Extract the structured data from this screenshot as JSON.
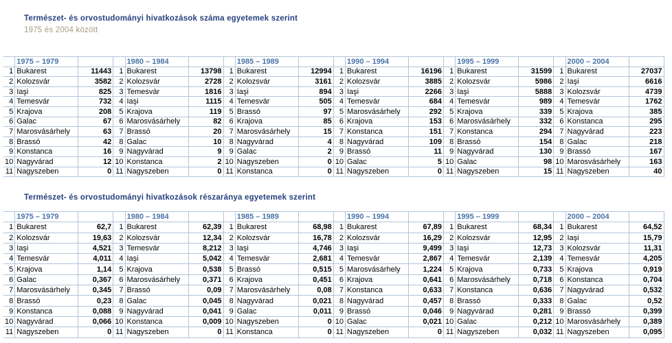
{
  "colors": {
    "title": "#263f7e",
    "subtitle": "#a69c7f",
    "period": "#4a74a8",
    "grid": "#b2c4d9",
    "text": "#000000",
    "background": "#ffffff"
  },
  "tables": [
    {
      "id": "counts",
      "title": "Természet- és orvostudományi hivatkozások száma egyetemek szerint",
      "subtitle": "1975 és 2004 között",
      "groups": [
        {
          "period": "1975 – 1979",
          "rows": [
            {
              "rank": "1",
              "city": "Bukarest",
              "value": "11443"
            },
            {
              "rank": "2",
              "city": "Kolozsvár",
              "value": "3582"
            },
            {
              "rank": "3",
              "city": "Iaşi",
              "value": "825"
            },
            {
              "rank": "4",
              "city": "Temesvár",
              "value": "732"
            },
            {
              "rank": "5",
              "city": "Krajova",
              "value": "208"
            },
            {
              "rank": "6",
              "city": "Galac",
              "value": "67"
            },
            {
              "rank": "7",
              "city": "Marosvásárhely",
              "value": "63"
            },
            {
              "rank": "8",
              "city": "Brassó",
              "value": "42"
            },
            {
              "rank": "9",
              "city": "Konstanca",
              "value": "16"
            },
            {
              "rank": "10",
              "city": "Nagyvárad",
              "value": "12"
            },
            {
              "rank": "11",
              "city": "Nagyszeben",
              "value": "0"
            }
          ]
        },
        {
          "period": "1980 – 1984",
          "rows": [
            {
              "rank": "1",
              "city": "Bukarest",
              "value": "13798"
            },
            {
              "rank": "2",
              "city": "Kolozsvár",
              "value": "2728"
            },
            {
              "rank": "3",
              "city": "Temesvár",
              "value": "1816"
            },
            {
              "rank": "4",
              "city": "Iaşi",
              "value": "1115"
            },
            {
              "rank": "5",
              "city": "Krajova",
              "value": "119"
            },
            {
              "rank": "6",
              "city": "Marosvásárhely",
              "value": "82"
            },
            {
              "rank": "7",
              "city": "Brassó",
              "value": "20"
            },
            {
              "rank": "8",
              "city": "Galac",
              "value": "10"
            },
            {
              "rank": "9",
              "city": "Nagyvárad",
              "value": "9"
            },
            {
              "rank": "10",
              "city": "Konstanca",
              "value": "2"
            },
            {
              "rank": "11",
              "city": "Nagyszeben",
              "value": "0"
            }
          ]
        },
        {
          "period": "1985 – 1989",
          "rows": [
            {
              "rank": "1",
              "city": "Bukarest",
              "value": "12994"
            },
            {
              "rank": "2",
              "city": "Kolozsvár",
              "value": "3161"
            },
            {
              "rank": "3",
              "city": "Iaşi",
              "value": "894"
            },
            {
              "rank": "4",
              "city": "Temesvár",
              "value": "505"
            },
            {
              "rank": "5",
              "city": "Brassó",
              "value": "97"
            },
            {
              "rank": "6",
              "city": "Krajova",
              "value": "85"
            },
            {
              "rank": "7",
              "city": "Marosvásárhely",
              "value": "15"
            },
            {
              "rank": "8",
              "city": "Nagyvárad",
              "value": "4"
            },
            {
              "rank": "9",
              "city": "Galac",
              "value": "2"
            },
            {
              "rank": "10",
              "city": "Nagyszeben",
              "value": "0"
            },
            {
              "rank": "11",
              "city": "Konstanca",
              "value": "0"
            }
          ]
        },
        {
          "period": "1990 – 1994",
          "rows": [
            {
              "rank": "1",
              "city": "Bukarest",
              "value": "16196"
            },
            {
              "rank": "2",
              "city": "Kolozsvár",
              "value": "3885"
            },
            {
              "rank": "3",
              "city": "Iaşi",
              "value": "2266"
            },
            {
              "rank": "4",
              "city": "Temesvár",
              "value": "684"
            },
            {
              "rank": "5",
              "city": "Marosvásárhely",
              "value": "292"
            },
            {
              "rank": "6",
              "city": "Krajova",
              "value": "153"
            },
            {
              "rank": "7",
              "city": "Konstanca",
              "value": "151"
            },
            {
              "rank": "8",
              "city": "Nagyvárad",
              "value": "109"
            },
            {
              "rank": "9",
              "city": "Brassó",
              "value": "11"
            },
            {
              "rank": "10",
              "city": "Galac",
              "value": "5"
            },
            {
              "rank": "11",
              "city": "Nagyszeben",
              "value": "0"
            }
          ]
        },
        {
          "period": "1995 – 1999",
          "rows": [
            {
              "rank": "1",
              "city": "Bukarest",
              "value": "31599"
            },
            {
              "rank": "2",
              "city": "Kolozsvár",
              "value": "5986"
            },
            {
              "rank": "3",
              "city": "Iaşi",
              "value": "5888"
            },
            {
              "rank": "4",
              "city": "Temesvár",
              "value": "989"
            },
            {
              "rank": "5",
              "city": "Krajova",
              "value": "339"
            },
            {
              "rank": "6",
              "city": "Marosvásárhely",
              "value": "332"
            },
            {
              "rank": "7",
              "city": "Konstanca",
              "value": "294"
            },
            {
              "rank": "8",
              "city": "Brassó",
              "value": "154"
            },
            {
              "rank": "9",
              "city": "Nagyvárad",
              "value": "130"
            },
            {
              "rank": "10",
              "city": "Galac",
              "value": "98"
            },
            {
              "rank": "11",
              "city": "Nagyszeben",
              "value": "15"
            }
          ]
        },
        {
          "period": "2000 – 2004",
          "rows": [
            {
              "rank": "1",
              "city": "Bukarest",
              "value": "27037"
            },
            {
              "rank": "2",
              "city": "Iaşi",
              "value": "6616"
            },
            {
              "rank": "3",
              "city": "Kolozsvár",
              "value": "4739"
            },
            {
              "rank": "4",
              "city": "Temesvár",
              "value": "1762"
            },
            {
              "rank": "5",
              "city": "Krajova",
              "value": "385"
            },
            {
              "rank": "6",
              "city": "Konstanca",
              "value": "295"
            },
            {
              "rank": "7",
              "city": "Nagyvárad",
              "value": "223"
            },
            {
              "rank": "8",
              "city": "Galac",
              "value": "218"
            },
            {
              "rank": "9",
              "city": "Brassó",
              "value": "167"
            },
            {
              "rank": "10",
              "city": "Marosvásárhely",
              "value": "163"
            },
            {
              "rank": "11",
              "city": "Nagyszeben",
              "value": "40"
            }
          ]
        }
      ]
    },
    {
      "id": "shares",
      "title": "Természet- és orvostudományi hivatkozások részaránya egyetemek szerint",
      "subtitle": "",
      "groups": [
        {
          "period": "1975 – 1979",
          "rows": [
            {
              "rank": "1",
              "city": "Bukarest",
              "value": "62,7"
            },
            {
              "rank": "2",
              "city": "Kolozsvár",
              "value": "19,63"
            },
            {
              "rank": "3",
              "city": "Iaşi",
              "value": "4,521"
            },
            {
              "rank": "4",
              "city": "Temesvár",
              "value": "4,011"
            },
            {
              "rank": "5",
              "city": "Krajova",
              "value": "1,14"
            },
            {
              "rank": "6",
              "city": "Galac",
              "value": "0,367"
            },
            {
              "rank": "7",
              "city": "Marosvásárhely",
              "value": "0,345"
            },
            {
              "rank": "8",
              "city": "Brassó",
              "value": "0,23"
            },
            {
              "rank": "9",
              "city": "Konstanca",
              "value": "0,088"
            },
            {
              "rank": "10",
              "city": "Nagyvárad",
              "value": "0,066"
            },
            {
              "rank": "11",
              "city": "Nagyszeben",
              "value": "0"
            }
          ]
        },
        {
          "period": "1980 – 1984",
          "rows": [
            {
              "rank": "1",
              "city": "Bukarest",
              "value": "62,39"
            },
            {
              "rank": "2",
              "city": "Kolozsvár",
              "value": "12,34"
            },
            {
              "rank": "3",
              "city": "Temesvár",
              "value": "8,212"
            },
            {
              "rank": "4",
              "city": "Iaşi",
              "value": "5,042"
            },
            {
              "rank": "5",
              "city": "Krajova",
              "value": "0,538"
            },
            {
              "rank": "6",
              "city": "Marosvásárhely",
              "value": "0,371"
            },
            {
              "rank": "7",
              "city": "Brassó",
              "value": "0,09"
            },
            {
              "rank": "8",
              "city": "Galac",
              "value": "0,045"
            },
            {
              "rank": "9",
              "city": "Nagyvárad",
              "value": "0,041"
            },
            {
              "rank": "10",
              "city": "Konstanca",
              "value": "0,009"
            },
            {
              "rank": "11",
              "city": "Nagyszeben",
              "value": "0"
            }
          ]
        },
        {
          "period": "1985 – 1989",
          "rows": [
            {
              "rank": "1",
              "city": "Bukarest",
              "value": "68,98"
            },
            {
              "rank": "2",
              "city": "Kolozsvár",
              "value": "16,78"
            },
            {
              "rank": "3",
              "city": "Iaşi",
              "value": "4,746"
            },
            {
              "rank": "4",
              "city": "Temesvár",
              "value": "2,681"
            },
            {
              "rank": "5",
              "city": "Brassó",
              "value": "0,515"
            },
            {
              "rank": "6",
              "city": "Krajova",
              "value": "0,451"
            },
            {
              "rank": "7",
              "city": "Marosvásárhely",
              "value": "0,08"
            },
            {
              "rank": "8",
              "city": "Nagyvárad",
              "value": "0,021"
            },
            {
              "rank": "9",
              "city": "Galac",
              "value": "0,011"
            },
            {
              "rank": "10",
              "city": "Nagyszeben",
              "value": "0"
            },
            {
              "rank": "11",
              "city": "Konstanca",
              "value": "0"
            }
          ]
        },
        {
          "period": "1990 – 1994",
          "rows": [
            {
              "rank": "1",
              "city": "Bukarest",
              "value": "67,89"
            },
            {
              "rank": "2",
              "city": "Kolozsvár",
              "value": "16,29"
            },
            {
              "rank": "3",
              "city": "Iaşi",
              "value": "9,499"
            },
            {
              "rank": "4",
              "city": "Temesvár",
              "value": "2,867"
            },
            {
              "rank": "5",
              "city": "Marosvásárhely",
              "value": "1,224"
            },
            {
              "rank": "6",
              "city": "Krajova",
              "value": "0,641"
            },
            {
              "rank": "7",
              "city": "Konstanca",
              "value": "0,633"
            },
            {
              "rank": "8",
              "city": "Nagyvárad",
              "value": "0,457"
            },
            {
              "rank": "9",
              "city": "Brassó",
              "value": "0,046"
            },
            {
              "rank": "10",
              "city": "Galac",
              "value": "0,021"
            },
            {
              "rank": "11",
              "city": "Nagyszeben",
              "value": "0"
            }
          ]
        },
        {
          "period": "1995 – 1999",
          "rows": [
            {
              "rank": "1",
              "city": "Bukarest",
              "value": "68,34"
            },
            {
              "rank": "2",
              "city": "Kolozsvár",
              "value": "12,95"
            },
            {
              "rank": "3",
              "city": "Iaşi",
              "value": "12,73"
            },
            {
              "rank": "4",
              "city": "Temesvár",
              "value": "2,139"
            },
            {
              "rank": "5",
              "city": "Krajova",
              "value": "0,733"
            },
            {
              "rank": "6",
              "city": "Marosvásárhely",
              "value": "0,718"
            },
            {
              "rank": "7",
              "city": "Konstanca",
              "value": "0,636"
            },
            {
              "rank": "8",
              "city": "Brassó",
              "value": "0,333"
            },
            {
              "rank": "9",
              "city": "Nagyvárad",
              "value": "0,281"
            },
            {
              "rank": "10",
              "city": "Galac",
              "value": "0,212"
            },
            {
              "rank": "11",
              "city": "Nagyszeben",
              "value": "0,032"
            }
          ]
        },
        {
          "period": "2000 – 2004",
          "rows": [
            {
              "rank": "1",
              "city": "Bukarest",
              "value": "64,52"
            },
            {
              "rank": "2",
              "city": "Iaşi",
              "value": "15,79"
            },
            {
              "rank": "3",
              "city": "Kolozsvár",
              "value": "11,31"
            },
            {
              "rank": "4",
              "city": "Temesvár",
              "value": "4,205"
            },
            {
              "rank": "5",
              "city": "Krajova",
              "value": "0,919"
            },
            {
              "rank": "6",
              "city": "Konstanca",
              "value": "0,704"
            },
            {
              "rank": "7",
              "city": "Nagyvárad",
              "value": "0,532"
            },
            {
              "rank": "8",
              "city": "Galac",
              "value": "0,52"
            },
            {
              "rank": "9",
              "city": "Brassó",
              "value": "0,399"
            },
            {
              "rank": "10",
              "city": "Marosvásárhely",
              "value": "0,389"
            },
            {
              "rank": "11",
              "city": "Nagyszeben",
              "value": "0,095"
            }
          ]
        }
      ]
    }
  ]
}
